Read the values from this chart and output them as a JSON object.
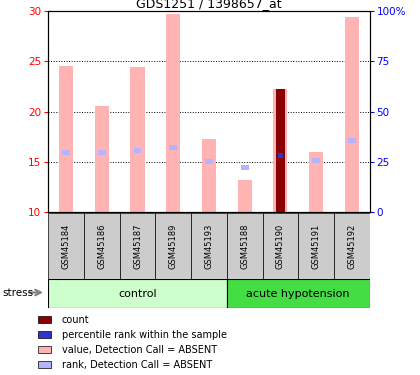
{
  "title": "GDS1251 / 1398657_at",
  "samples": [
    "GSM45184",
    "GSM45186",
    "GSM45187",
    "GSM45189",
    "GSM45193",
    "GSM45188",
    "GSM45190",
    "GSM45191",
    "GSM45192"
  ],
  "value_absent": [
    24.5,
    20.6,
    24.4,
    29.7,
    17.3,
    13.2,
    22.2,
    16.0,
    29.4
  ],
  "rank_absent": [
    15.9,
    15.9,
    16.1,
    16.4,
    15.0,
    14.4,
    15.6,
    15.1,
    17.1
  ],
  "count_idx": 6,
  "count_value": 22.2,
  "count_rank": 15.6,
  "ylim": [
    10,
    30
  ],
  "yticks_left": [
    10,
    15,
    20,
    25,
    30
  ],
  "yticks_right_vals": [
    0,
    25,
    50,
    75,
    100
  ],
  "yticks_right_labels": [
    "0",
    "25",
    "50",
    "75",
    "100%"
  ],
  "color_value_absent": "#ffb3b3",
  "color_rank_absent": "#b3b3ff",
  "color_count": "#8b0000",
  "color_count_rank": "#3333cc",
  "control_bg_light": "#ccffcc",
  "control_bg": "#90ee90",
  "hypotension_bg": "#44dd44",
  "sample_bg": "#cccccc",
  "bar_width": 0.4,
  "rank_bar_width": 0.22,
  "rank_bar_height": 0.45,
  "n_control": 5,
  "n_hypotension": 4,
  "legend_items": [
    {
      "color": "#8b0000",
      "label": "count"
    },
    {
      "color": "#3333cc",
      "label": "percentile rank within the sample"
    },
    {
      "color": "#ffb3b3",
      "label": "value, Detection Call = ABSENT"
    },
    {
      "color": "#b3b3ff",
      "label": "rank, Detection Call = ABSENT"
    }
  ]
}
